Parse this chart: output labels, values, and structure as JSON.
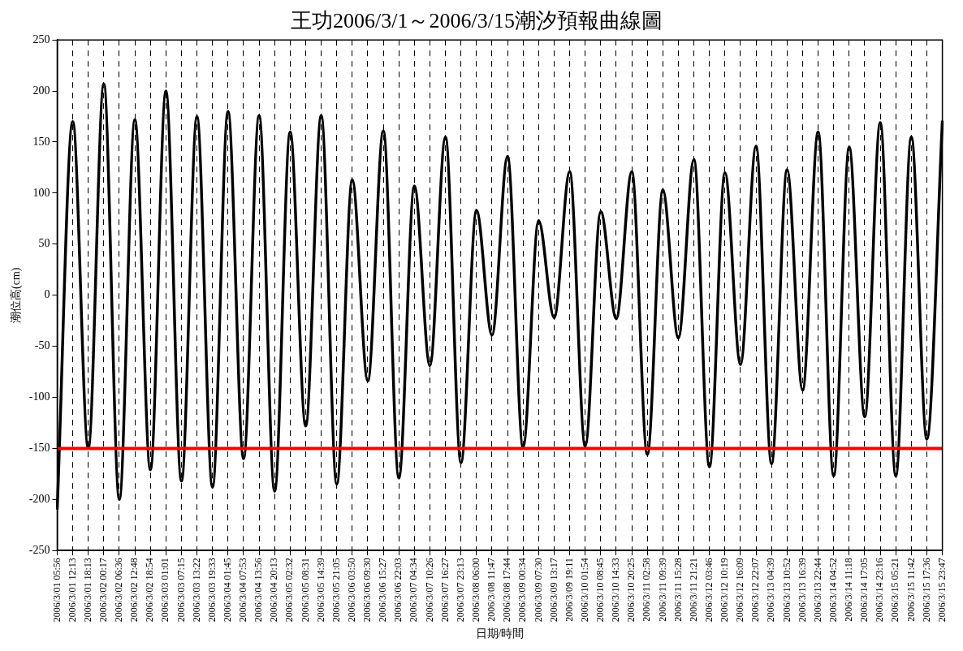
{
  "chart_data": {
    "type": "line",
    "title": "王功2006/3/1～2006/3/15潮汐預報曲線圖",
    "xlabel": "日期/時間",
    "ylabel": "潮位高(cm)",
    "categories": [
      "2006/3/01 05:56",
      "2006/3/01 12:13",
      "2006/3/01 18:13",
      "2006/3/02 00:17",
      "2006/3/02 06:36",
      "2006/3/02 12:48",
      "2006/3/02 18:54",
      "2006/3/03 01:01",
      "2006/3/03 07:15",
      "2006/3/03 13:22",
      "2006/3/03 19:33",
      "2006/3/04 01:45",
      "2006/3/04 07:53",
      "2006/3/04 13:56",
      "2006/3/04 20:13",
      "2006/3/05 02:32",
      "2006/3/05 08:31",
      "2006/3/05 14:39",
      "2006/3/05 21:05",
      "2006/3/06 03:50",
      "2006/3/06 09:30",
      "2006/3/06 15:27",
      "2006/3/06 22:03",
      "2006/3/07 04:34",
      "2006/3/07 10:26",
      "2006/3/07 16:27",
      "2006/3/07 23:13",
      "2006/3/08 06:00",
      "2006/3/08 11:47",
      "2006/3/08 17:44",
      "2006/3/09 00:34",
      "2006/3/09 07:30",
      "2006/3/09 13:17",
      "2006/3/09 19:11",
      "2006/3/10 01:54",
      "2006/3/10 08:45",
      "2006/3/10 14:33",
      "2006/3/10 20:25",
      "2006/3/11 02:58",
      "2006/3/11 09:39",
      "2006/3/11 15:28",
      "2006/3/11 21:21",
      "2006/3/12 03:46",
      "2006/3/12 10:19",
      "2006/3/12 16:09",
      "2006/3/12 22:07",
      "2006/3/13 04:39",
      "2006/3/13 10:52",
      "2006/3/13 16:39",
      "2006/3/13 22:44",
      "2006/3/14 04:52",
      "2006/3/14 11:18",
      "2006/3/14 17:05",
      "2006/3/14 23:16",
      "2006/3/15 05:21",
      "2006/3/15 11:42",
      "2006/3/15 17:36",
      "2006/3/15 23:47"
    ],
    "series": [
      {
        "color": "#000000",
        "values": [
          -210,
          170,
          -150,
          207,
          -200,
          172,
          -171,
          200,
          -182,
          175,
          -188,
          180,
          -160,
          176,
          -192,
          160,
          -128,
          176,
          -185,
          113,
          -84,
          161,
          -179,
          107,
          -69,
          155,
          -164,
          83,
          -39,
          136,
          -149,
          73,
          -22,
          121,
          -148,
          82,
          -23,
          121,
          -156,
          103,
          -42,
          133,
          -168,
          120,
          -68,
          146,
          -165,
          123,
          -93,
          160,
          -177,
          145,
          -119,
          169,
          -177,
          155,
          -141,
          171
        ]
      }
    ],
    "ylim": [
      -250,
      250
    ],
    "yticks": [
      -250,
      -200,
      -150,
      -100,
      -50,
      0,
      50,
      100,
      150,
      200,
      250
    ],
    "ref_lines": [
      {
        "axis": "y",
        "value": -150,
        "color": "#ff0000"
      }
    ],
    "grid": "x",
    "line_style": "solid",
    "legend": false
  }
}
